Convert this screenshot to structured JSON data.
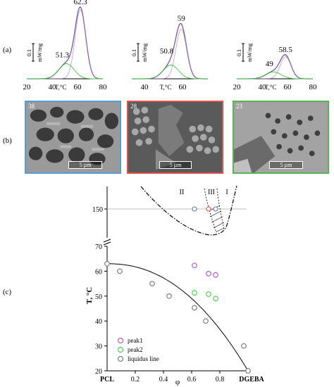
{
  "panel_labels": {
    "a": "(a)",
    "b": "(b)",
    "c": "(c)"
  },
  "dsc": {
    "y_unit_line1": "0.1",
    "y_unit_line2": "mW/mg",
    "x_unit": "T,°C",
    "x_ticks": [
      "20",
      "40",
      "60",
      "80"
    ],
    "panels": [
      {
        "peak1_label": "62.3",
        "peak2_label": "51.3",
        "peak1_T": 62.3,
        "peak2_T": 51.3,
        "peak1_h": 1.0,
        "peak2_h": 0.22
      },
      {
        "peak1_label": "59",
        "peak2_label": "50.8",
        "peak1_T": 59,
        "peak2_T": 50.8,
        "peak1_h": 0.72,
        "peak2_h": 0.2
      },
      {
        "peak1_label": "58.5",
        "peak2_label": "49",
        "peak1_T": 58.5,
        "peak2_T": 49,
        "peak1_h": 0.32,
        "peak2_h": 0.1
      }
    ]
  },
  "sem": [
    {
      "tag": "38",
      "scale": "5 µm",
      "border": "#5b9bd5"
    },
    {
      "tag": "28",
      "scale": "5 µm",
      "border": "#e05050"
    },
    {
      "tag": "23",
      "scale": "5 µm",
      "border": "#58b058"
    }
  ],
  "chart_data": {
    "type": "scatter",
    "xlabel": "φ",
    "ylabel": "T, °C",
    "x_ticks": [
      "0.2",
      "0.4",
      "0.6",
      "0.8"
    ],
    "x_end_labels": {
      "left": "PCL",
      "right": "DGEBA"
    },
    "y_ticks": [
      "20",
      "30",
      "40",
      "50",
      "60",
      "70"
    ],
    "y_break_tick": "150",
    "xlim": [
      0,
      1
    ],
    "ylim": [
      20,
      70
    ],
    "region_labels": [
      "II",
      "III",
      "I"
    ],
    "series": [
      {
        "name": "peak1",
        "color": "#b060c8",
        "x": [
          0.62,
          0.72,
          0.77
        ],
        "y": [
          62.3,
          59,
          58.5
        ]
      },
      {
        "name": "peak2",
        "color": "#50d050",
        "x": [
          0.62,
          0.72,
          0.77
        ],
        "y": [
          51.3,
          50.8,
          49
        ]
      },
      {
        "name": "liquidus line",
        "color": "#808080",
        "x": [
          0,
          0.09,
          0.32,
          0.44,
          0.62,
          0.7,
          0.97,
          1.0
        ],
        "y": [
          63,
          60,
          55,
          50,
          45.3,
          40,
          30,
          20
        ]
      }
    ],
    "top_markers": [
      {
        "x": 0.62,
        "color": "#6070c0"
      },
      {
        "x": 0.72,
        "color": "#e05050"
      },
      {
        "x": 0.77,
        "color": "#6070c0"
      }
    ]
  }
}
